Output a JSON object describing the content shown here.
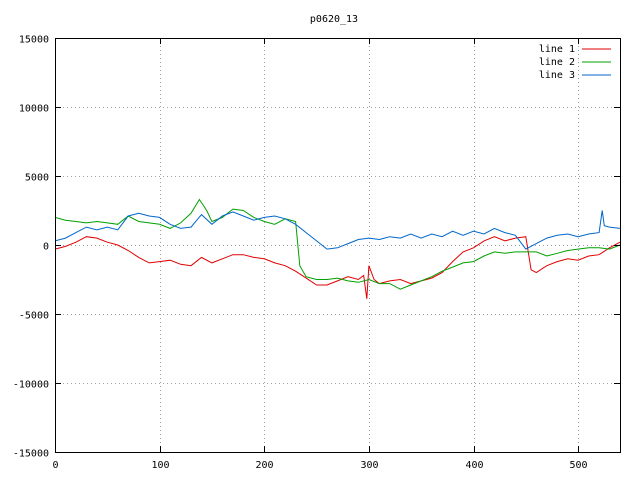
{
  "chart_data": {
    "type": "line",
    "title": "p0620_13",
    "xlabel": "",
    "ylabel": "",
    "xlim": [
      0,
      540
    ],
    "ylim": [
      -15000,
      15000
    ],
    "x_ticks": [
      0,
      100,
      200,
      300,
      400,
      500
    ],
    "y_ticks": [
      -15000,
      -10000,
      -5000,
      0,
      5000,
      10000,
      15000
    ],
    "x_tick_labels": [
      "0",
      "100",
      "200",
      "300",
      "400",
      "500"
    ],
    "y_tick_labels": [
      "-15000",
      "-10000",
      "-5000",
      "0",
      "5000",
      "10000",
      "15000"
    ],
    "grid": true,
    "legend_position": "top-right",
    "series": [
      {
        "name": "line 1",
        "color": "#e00000",
        "points": [
          [
            0,
            -300
          ],
          [
            10,
            -100
          ],
          [
            20,
            200
          ],
          [
            30,
            600
          ],
          [
            40,
            500
          ],
          [
            50,
            200
          ],
          [
            60,
            0
          ],
          [
            70,
            -400
          ],
          [
            80,
            -900
          ],
          [
            90,
            -1300
          ],
          [
            100,
            -1200
          ],
          [
            110,
            -1100
          ],
          [
            120,
            -1400
          ],
          [
            130,
            -1500
          ],
          [
            140,
            -900
          ],
          [
            150,
            -1300
          ],
          [
            160,
            -1000
          ],
          [
            170,
            -700
          ],
          [
            180,
            -700
          ],
          [
            190,
            -900
          ],
          [
            200,
            -1000
          ],
          [
            210,
            -1300
          ],
          [
            220,
            -1500
          ],
          [
            230,
            -1900
          ],
          [
            240,
            -2400
          ],
          [
            250,
            -2900
          ],
          [
            260,
            -2900
          ],
          [
            270,
            -2600
          ],
          [
            280,
            -2300
          ],
          [
            290,
            -2500
          ],
          [
            295,
            -2200
          ],
          [
            298,
            -3900
          ],
          [
            300,
            -1500
          ],
          [
            305,
            -2500
          ],
          [
            310,
            -2800
          ],
          [
            320,
            -2600
          ],
          [
            330,
            -2500
          ],
          [
            340,
            -2800
          ],
          [
            350,
            -2600
          ],
          [
            360,
            -2400
          ],
          [
            370,
            -2000
          ],
          [
            380,
            -1200
          ],
          [
            390,
            -500
          ],
          [
            400,
            -200
          ],
          [
            410,
            300
          ],
          [
            420,
            600
          ],
          [
            430,
            300
          ],
          [
            440,
            500
          ],
          [
            450,
            600
          ],
          [
            455,
            -1800
          ],
          [
            460,
            -2000
          ],
          [
            470,
            -1500
          ],
          [
            480,
            -1200
          ],
          [
            490,
            -1000
          ],
          [
            500,
            -1100
          ],
          [
            510,
            -800
          ],
          [
            520,
            -700
          ],
          [
            530,
            -200
          ],
          [
            540,
            200
          ]
        ]
      },
      {
        "name": "line 2",
        "color": "#00a000",
        "points": [
          [
            0,
            2000
          ],
          [
            10,
            1800
          ],
          [
            20,
            1700
          ],
          [
            30,
            1600
          ],
          [
            40,
            1700
          ],
          [
            50,
            1600
          ],
          [
            60,
            1500
          ],
          [
            70,
            2100
          ],
          [
            80,
            1700
          ],
          [
            90,
            1600
          ],
          [
            100,
            1500
          ],
          [
            110,
            1200
          ],
          [
            120,
            1600
          ],
          [
            130,
            2300
          ],
          [
            138,
            3300
          ],
          [
            145,
            2500
          ],
          [
            150,
            1700
          ],
          [
            160,
            2000
          ],
          [
            170,
            2600
          ],
          [
            180,
            2500
          ],
          [
            190,
            2000
          ],
          [
            200,
            1700
          ],
          [
            210,
            1500
          ],
          [
            220,
            1900
          ],
          [
            230,
            1700
          ],
          [
            234,
            -1500
          ],
          [
            240,
            -2300
          ],
          [
            250,
            -2500
          ],
          [
            260,
            -2500
          ],
          [
            270,
            -2400
          ],
          [
            280,
            -2600
          ],
          [
            290,
            -2700
          ],
          [
            300,
            -2500
          ],
          [
            310,
            -2800
          ],
          [
            320,
            -2800
          ],
          [
            330,
            -3200
          ],
          [
            340,
            -2900
          ],
          [
            350,
            -2600
          ],
          [
            360,
            -2300
          ],
          [
            370,
            -1900
          ],
          [
            380,
            -1600
          ],
          [
            390,
            -1300
          ],
          [
            400,
            -1200
          ],
          [
            410,
            -800
          ],
          [
            420,
            -500
          ],
          [
            430,
            -600
          ],
          [
            440,
            -500
          ],
          [
            450,
            -500
          ],
          [
            460,
            -500
          ],
          [
            470,
            -800
          ],
          [
            480,
            -600
          ],
          [
            490,
            -400
          ],
          [
            500,
            -300
          ],
          [
            510,
            -200
          ],
          [
            520,
            -200
          ],
          [
            530,
            -300
          ],
          [
            540,
            0
          ]
        ]
      },
      {
        "name": "line 3",
        "color": "#0066cc",
        "points": [
          [
            0,
            300
          ],
          [
            10,
            500
          ],
          [
            20,
            900
          ],
          [
            30,
            1300
          ],
          [
            40,
            1100
          ],
          [
            50,
            1300
          ],
          [
            60,
            1100
          ],
          [
            70,
            2100
          ],
          [
            80,
            2300
          ],
          [
            90,
            2100
          ],
          [
            100,
            2000
          ],
          [
            110,
            1500
          ],
          [
            120,
            1200
          ],
          [
            130,
            1300
          ],
          [
            140,
            2200
          ],
          [
            150,
            1500
          ],
          [
            160,
            2100
          ],
          [
            170,
            2400
          ],
          [
            180,
            2100
          ],
          [
            190,
            1800
          ],
          [
            200,
            2000
          ],
          [
            210,
            2100
          ],
          [
            220,
            1900
          ],
          [
            230,
            1500
          ],
          [
            240,
            900
          ],
          [
            250,
            300
          ],
          [
            260,
            -300
          ],
          [
            270,
            -200
          ],
          [
            280,
            100
          ],
          [
            290,
            400
          ],
          [
            300,
            500
          ],
          [
            310,
            400
          ],
          [
            320,
            600
          ],
          [
            330,
            500
          ],
          [
            340,
            800
          ],
          [
            350,
            500
          ],
          [
            360,
            800
          ],
          [
            370,
            600
          ],
          [
            380,
            1000
          ],
          [
            390,
            700
          ],
          [
            400,
            1000
          ],
          [
            410,
            800
          ],
          [
            420,
            1200
          ],
          [
            430,
            900
          ],
          [
            440,
            700
          ],
          [
            450,
            -300
          ],
          [
            460,
            100
          ],
          [
            470,
            500
          ],
          [
            480,
            700
          ],
          [
            490,
            800
          ],
          [
            500,
            600
          ],
          [
            510,
            800
          ],
          [
            520,
            900
          ],
          [
            523,
            2500
          ],
          [
            525,
            1400
          ],
          [
            530,
            1300
          ],
          [
            540,
            1200
          ]
        ]
      }
    ]
  }
}
